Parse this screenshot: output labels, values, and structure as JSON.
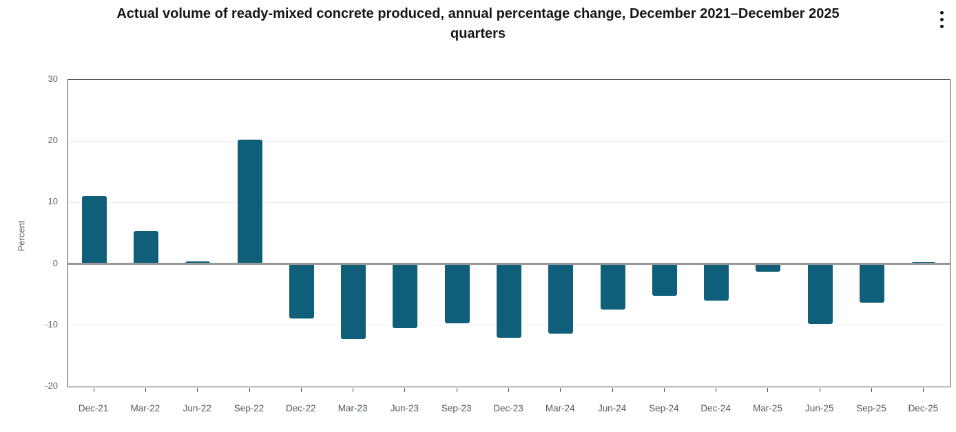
{
  "header": {
    "title_lines": [
      "Actual volume of ready-mixed concrete produced, annual percentage change, December 2021–December 2025",
      "quarters"
    ],
    "menu_icon": "kebab-menu-icon"
  },
  "chart_data": {
    "type": "bar",
    "title": "Actual volume of ready-mixed concrete produced, annual percentage change, December 2021–December 2025 quarters",
    "xlabel": "",
    "ylabel": "Percent",
    "ylim": [
      -20,
      30
    ],
    "yticks": [
      30,
      20,
      10,
      0,
      -10,
      -20
    ],
    "grid": true,
    "legend": "none",
    "categories": [
      "Dec-21",
      "Mar-22",
      "Jun-22",
      "Sep-22",
      "Dec-22",
      "Mar-23",
      "Jun-23",
      "Sep-23",
      "Dec-23",
      "Mar-24",
      "Jun-24",
      "Sep-24",
      "Dec-24",
      "Mar-25",
      "Jun-25",
      "Sep-25",
      "Dec-25"
    ],
    "values": [
      11.0,
      5.3,
      0.4,
      20.2,
      -8.9,
      -12.3,
      -10.5,
      -9.7,
      -12.0,
      -11.4,
      -7.5,
      -5.2,
      -6.0,
      -1.3,
      -9.8,
      -6.3,
      0.3
    ],
    "colors": {
      "bar": "#0F5E7A",
      "zero_line": "#999999",
      "gridline": "#ECECEC",
      "axis_border": "#4D4D4D",
      "axis_text": "#5A6470",
      "title_text": "#161616"
    }
  }
}
